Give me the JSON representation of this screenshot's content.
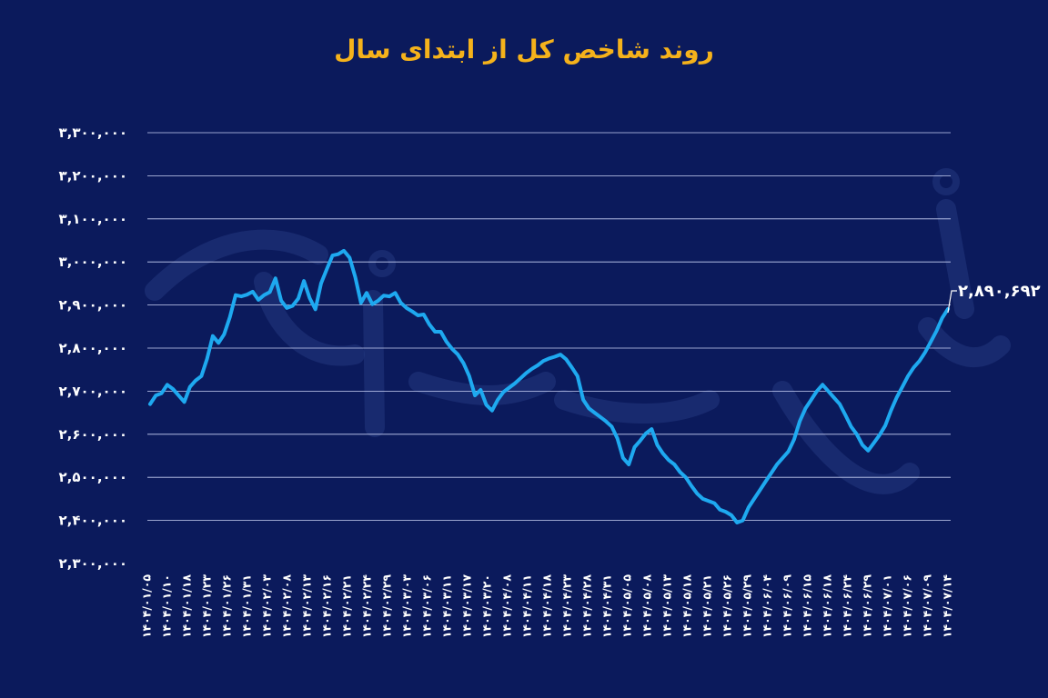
{
  "colors": {
    "background": "#0b1a5c",
    "title": "#f5b21b",
    "line": "#1ea9f0",
    "grid": "#c9d2f5",
    "text": "#ffffff"
  },
  "chart_data": {
    "type": "line",
    "title": "روند شاخص کل از ابتدای سال",
    "xlabel": "",
    "ylabel": "",
    "ylim": [
      2300000,
      3300000
    ],
    "grid": true,
    "y_ticks": [
      "۳,۳۰۰,۰۰۰",
      "۳,۲۰۰,۰۰۰",
      "۳,۱۰۰,۰۰۰",
      "۳,۰۰۰,۰۰۰",
      "۲,۹۰۰,۰۰۰",
      "۲,۸۰۰,۰۰۰",
      "۲,۷۰۰,۰۰۰",
      "۲,۶۰۰,۰۰۰",
      "۲,۵۰۰,۰۰۰",
      "۲,۴۰۰,۰۰۰",
      "۲,۳۰۰,۰۰۰"
    ],
    "x_ticks": [
      "۱۴۰۴/۰۱/۰۵",
      "۱۴۰۴/۰۱/۱۰",
      "۱۴۰۴/۰۱/۱۸",
      "۱۴۰۴/۰۱/۲۳",
      "۱۴۰۴/۰۱/۲۶",
      "۱۴۰۴/۰۱/۳۱",
      "۱۴۰۴/۰۲/۰۳",
      "۱۴۰۴/۰۲/۰۸",
      "۱۴۰۴/۰۲/۱۳",
      "۱۴۰۴/۰۲/۱۶",
      "۱۴۰۴/۰۲/۲۱",
      "۱۴۰۴/۰۲/۲۴",
      "۱۴۰۴/۰۲/۲۹",
      "۱۴۰۴/۰۳/۰۳",
      "۱۴۰۴/۰۳/۰۶",
      "۱۴۰۴/۰۳/۱۱",
      "۱۴۰۴/۰۳/۱۷",
      "۱۴۰۴/۰۳/۲۰",
      "۱۴۰۴/۰۴/۰۸",
      "۱۴۰۴/۰۴/۱۱",
      "۱۴۰۴/۰۴/۱۸",
      "۱۴۰۴/۰۴/۲۳",
      "۱۴۰۴/۰۴/۲۸",
      "۱۴۰۴/۰۴/۳۱",
      "۱۴۰۴/۰۵/۰۵",
      "۱۴۰۴/۰۵/۰۸",
      "۱۴۰۴/۰۵/۱۳",
      "۱۴۰۴/۰۵/۱۸",
      "۱۴۰۴/۰۵/۲۱",
      "۱۴۰۴/۰۵/۲۶",
      "۱۴۰۴/۰۵/۲۹",
      "۱۴۰۴/۰۶/۰۴",
      "۱۴۰۴/۰۶/۰۹",
      "۱۴۰۴/۰۶/۱۵",
      "۱۴۰۴/۰۶/۱۸",
      "۱۴۰۴/۰۶/۲۴",
      "۱۴۰۴/۰۶/۲۹",
      "۱۴۰۴/۰۷/۰۱",
      "۱۴۰۴/۰۷/۰۶",
      "۱۴۰۴/۰۷/۰۹",
      "۱۴۰۴/۰۷/۱۴"
    ],
    "last_value_label": "۲,۸۹۰,۶۹۲",
    "series": [
      {
        "values": [
          2670000,
          2690000,
          2695000,
          2715000,
          2705000,
          2690000,
          2675000,
          2710000,
          2725000,
          2735000,
          2775000,
          2828000,
          2812000,
          2832000,
          2872000,
          2923000,
          2920000,
          2924000,
          2931000,
          2912000,
          2923000,
          2930000,
          2962000,
          2910000,
          2893000,
          2898000,
          2915000,
          2956000,
          2916000,
          2890000,
          2950000,
          2983000,
          3015000,
          3018000,
          3026000,
          3010000,
          2965000,
          2905000,
          2928000,
          2902000,
          2910000,
          2922000,
          2920000,
          2928000,
          2905000,
          2893000,
          2885000,
          2876000,
          2878000,
          2855000,
          2838000,
          2838000,
          2815000,
          2798000,
          2785000,
          2765000,
          2735000,
          2690000,
          2703000,
          2668000,
          2655000,
          2680000,
          2698000,
          2708000,
          2718000,
          2730000,
          2742000,
          2752000,
          2760000,
          2770000,
          2776000,
          2780000,
          2785000,
          2774000,
          2755000,
          2735000,
          2680000,
          2660000,
          2650000,
          2640000,
          2630000,
          2618000,
          2590000,
          2545000,
          2530000,
          2570000,
          2585000,
          2602000,
          2612000,
          2575000,
          2555000,
          2540000,
          2530000,
          2512000,
          2500000,
          2480000,
          2462000,
          2450000,
          2445000,
          2440000,
          2425000,
          2420000,
          2412000,
          2395000,
          2400000,
          2430000,
          2450000,
          2470000,
          2490000,
          2510000,
          2530000,
          2545000,
          2560000,
          2588000,
          2630000,
          2660000,
          2680000,
          2700000,
          2715000,
          2700000,
          2685000,
          2670000,
          2645000,
          2618000,
          2600000,
          2575000,
          2562000,
          2580000,
          2598000,
          2620000,
          2655000,
          2685000,
          2710000,
          2735000,
          2755000,
          2770000,
          2790000,
          2815000,
          2840000,
          2870000,
          2890692
        ]
      }
    ]
  }
}
